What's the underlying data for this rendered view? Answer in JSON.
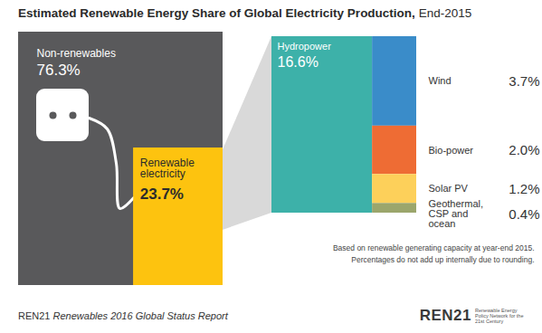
{
  "chart_data": {
    "type": "treemap",
    "title": "Estimated Renewable Energy Share of Global Electricity Production,",
    "subtitle": "End-2015",
    "categories": [
      "Non-renewables",
      "Renewable electricity"
    ],
    "values": [
      76.3,
      23.7
    ],
    "value_labels": [
      "76.3%",
      "23.7%"
    ],
    "colors": [
      "#59595b",
      "#fdc30f"
    ],
    "data_labels": true,
    "breakdown": {
      "parent": "Renewable electricity",
      "categories": [
        "Hydropower",
        "Wind",
        "Bio-power",
        "Solar PV",
        "Geothermal, CSP and ocean"
      ],
      "values": [
        16.6,
        3.7,
        2.0,
        1.2,
        0.4
      ],
      "value_labels": [
        "16.6%",
        "3.7%",
        "2.0%",
        "1.2%",
        "0.4%"
      ],
      "colors": [
        "#3db1a9",
        "#3a8cc9",
        "#ee6c34",
        "#fdd05a",
        "#9ba66c"
      ]
    },
    "notes": [
      "Based on renewable generating capacity at year-end 2015.",
      "Percentages do not add up internally due to rounding."
    ],
    "source": {
      "organization": "REN21",
      "report": "Renewables 2016 Global Status Report"
    },
    "logo": {
      "name": "REN21",
      "tagline": "Renewable Energy Policy Network for the 21st Century"
    }
  }
}
